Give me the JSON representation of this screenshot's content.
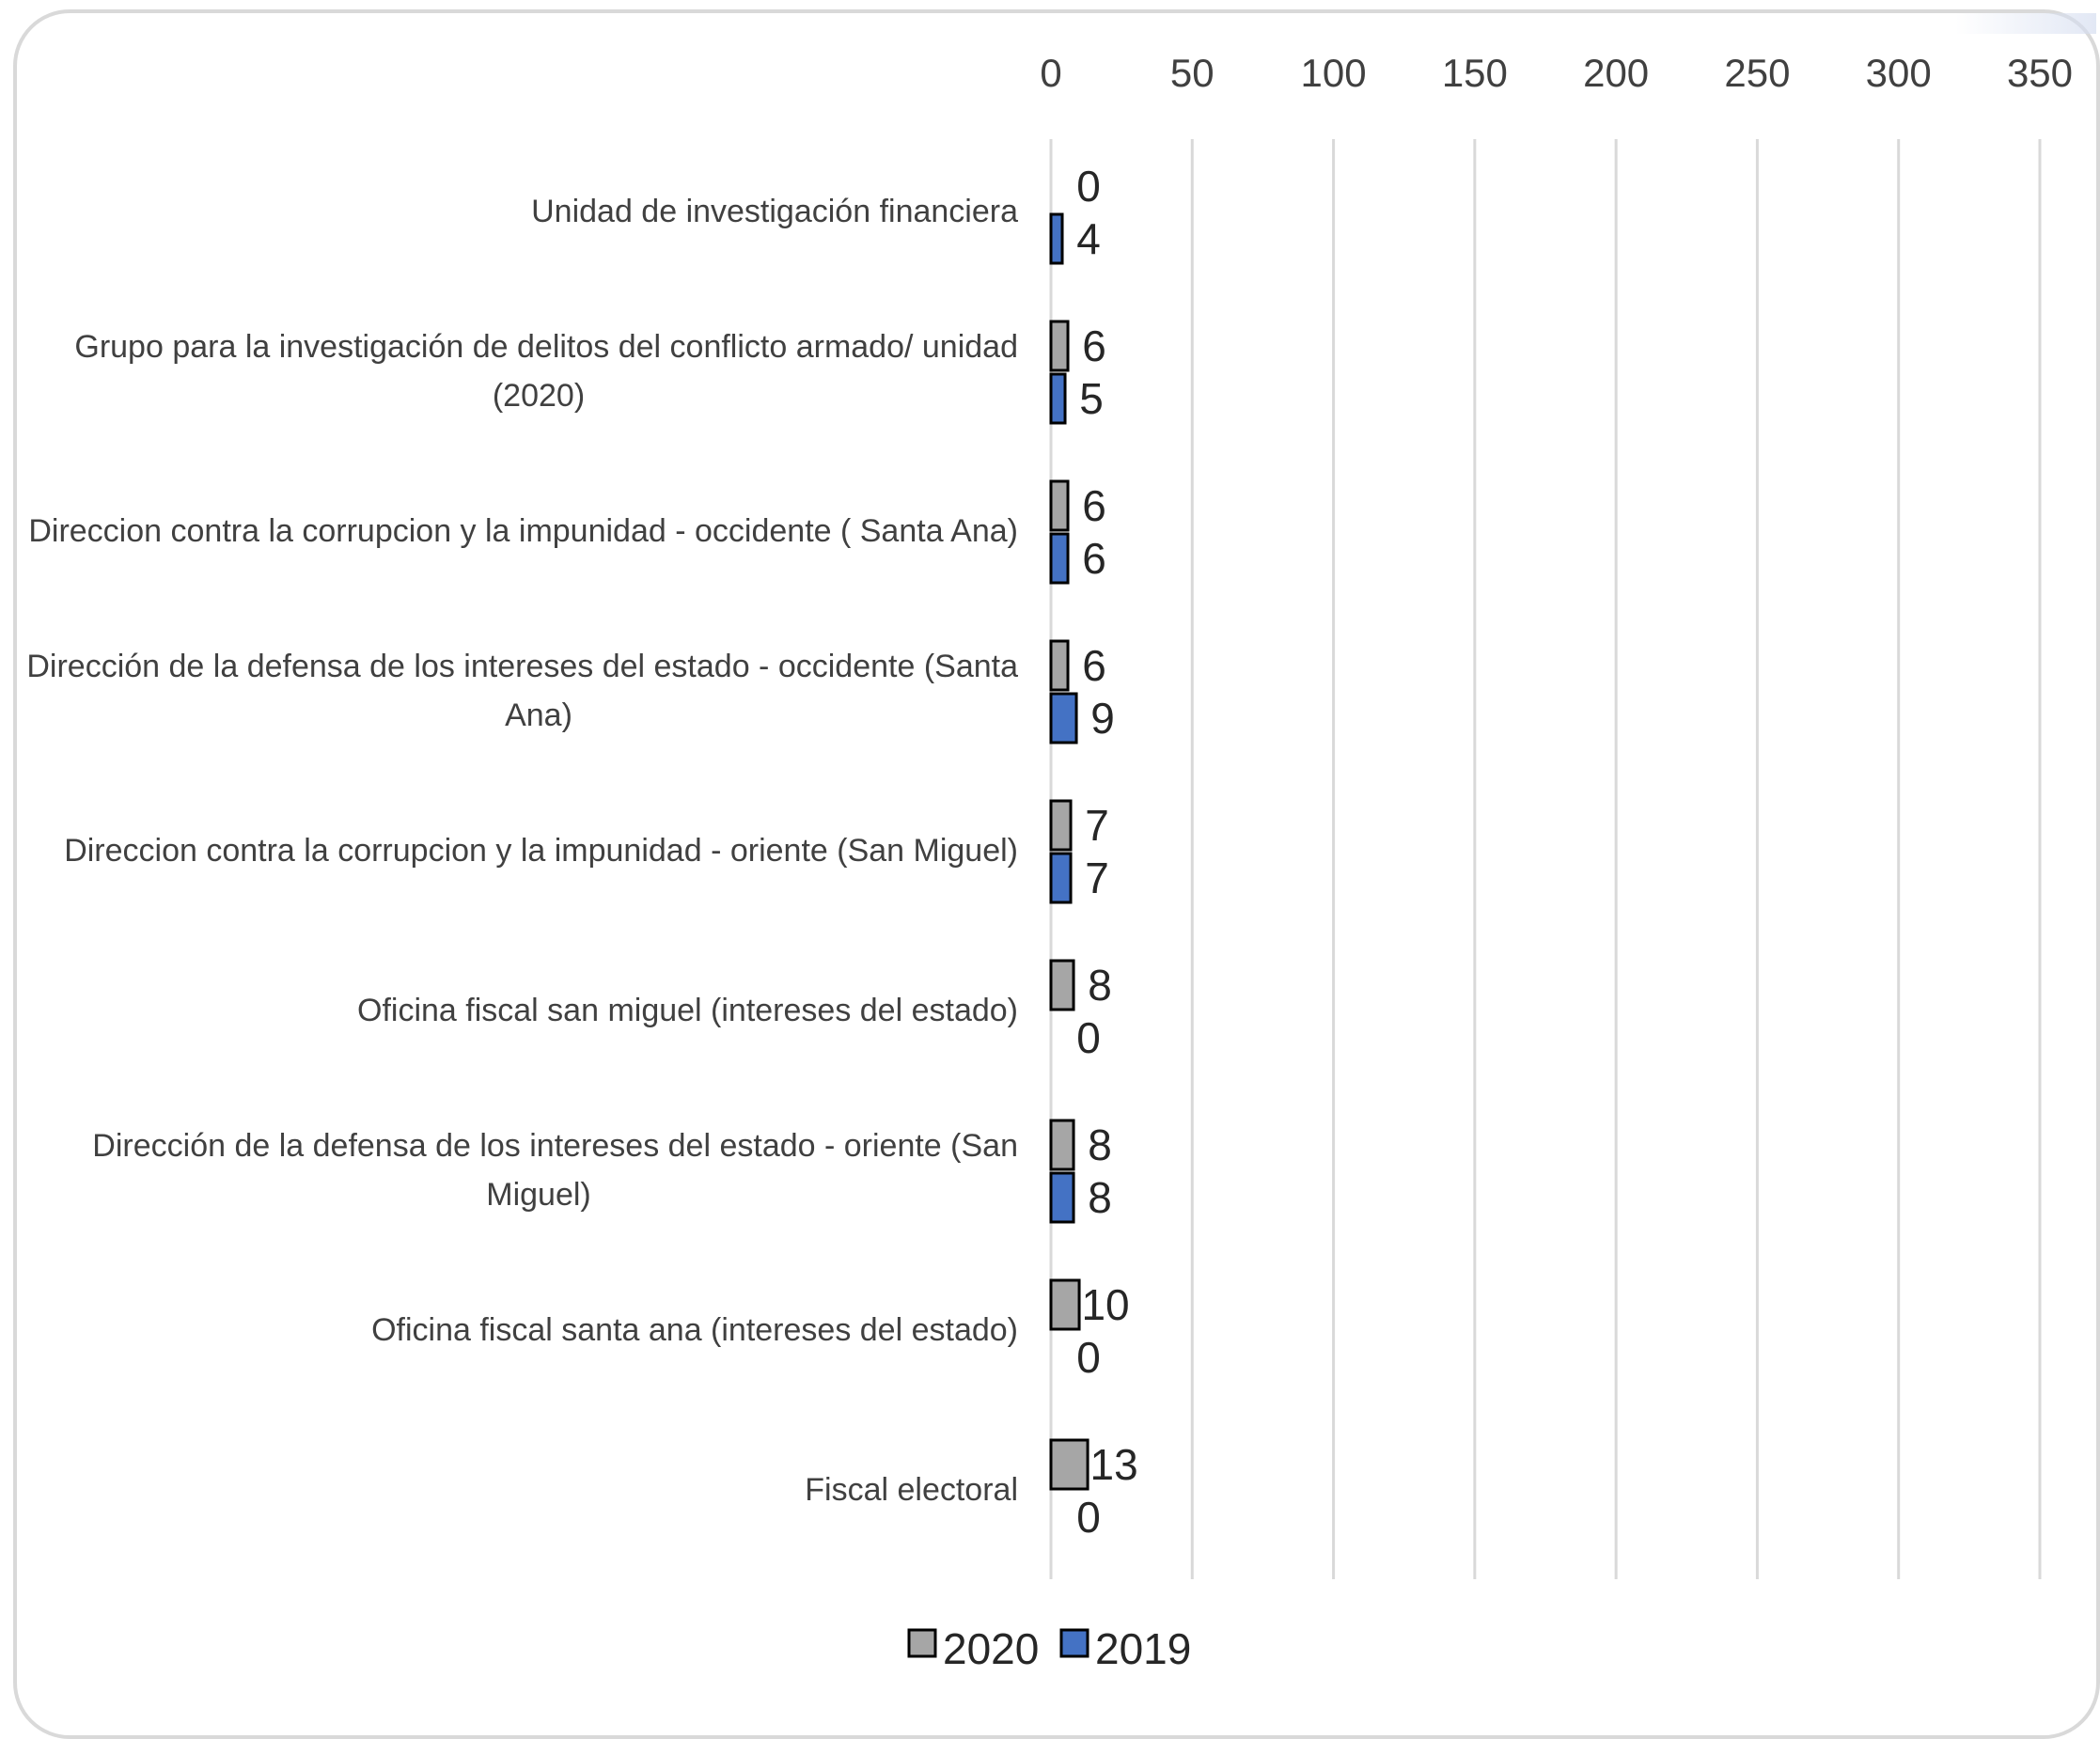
{
  "chart_data": {
    "type": "bar",
    "orientation": "horizontal",
    "categories": [
      "Unidad de investigación financiera",
      "Grupo para la investigación de delitos del conflicto armado/ unidad (2020)",
      "Direccion contra la corrupcion y la impunidad - occidente ( Santa Ana)",
      "Dirección de la defensa de los intereses del estado - occidente (Santa Ana)",
      "Direccion contra la corrupcion y la impunidad - oriente (San Miguel)",
      "Oficina fiscal san miguel (intereses del estado)",
      "Dirección de la defensa de los intereses del estado - oriente (San Miguel)",
      "Oficina fiscal santa ana (intereses del estado)",
      "Fiscal electoral"
    ],
    "category_lines": [
      [
        "Unidad de investigación financiera"
      ],
      [
        "Grupo para la investigación de delitos del conflicto armado/ unidad",
        "(2020)"
      ],
      [
        "Direccion contra la corrupcion y la impunidad - occidente ( Santa Ana)"
      ],
      [
        "Dirección de la defensa de los intereses del estado - occidente (Santa",
        "Ana)"
      ],
      [
        "Direccion contra la corrupcion y la impunidad - oriente (San Miguel)"
      ],
      [
        "Oficina fiscal san miguel (intereses del estado)"
      ],
      [
        "Dirección de la defensa de los intereses del estado - oriente (San",
        "Miguel)"
      ],
      [
        "Oficina fiscal santa ana (intereses del estado)"
      ],
      [
        "Fiscal electoral"
      ]
    ],
    "series": [
      {
        "name": "2020",
        "color": "#a6a6a6",
        "values": [
          0,
          6,
          6,
          6,
          7,
          8,
          8,
          10,
          13
        ]
      },
      {
        "name": "2019",
        "color": "#4472c4",
        "values": [
          4,
          5,
          6,
          9,
          7,
          0,
          8,
          0,
          0
        ]
      }
    ],
    "xlim": [
      0,
      350
    ],
    "x_ticks": [
      0,
      50,
      100,
      150,
      200,
      250,
      300,
      350
    ],
    "x_axis_position": "top",
    "grid": true,
    "legend": "bottom",
    "title": "",
    "xlabel": "",
    "ylabel": ""
  },
  "colors": {
    "grid": "#d9d9d9",
    "bar_outline": "#000000",
    "label_text": "#404040"
  }
}
